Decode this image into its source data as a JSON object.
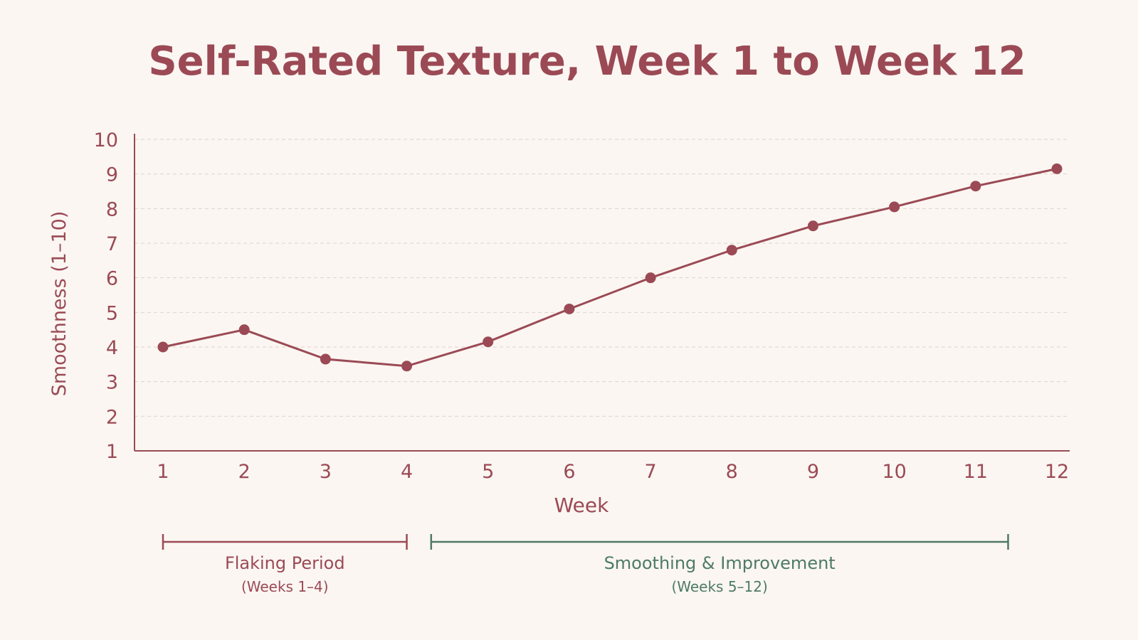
{
  "colors": {
    "background": "#fbf6f2",
    "primary": "#9b4a55",
    "secondary": "#4e7a66",
    "grid": "#dcd3cf"
  },
  "chart_data": {
    "type": "line",
    "title": "Self-Rated Texture, Week 1 to Week 12",
    "xlabel": "Week",
    "ylabel": "Smoothness (1–10)",
    "x": [
      1,
      2,
      3,
      4,
      5,
      6,
      7,
      8,
      9,
      10,
      11,
      12
    ],
    "x_ticks": [
      "1",
      "2",
      "3",
      "4",
      "5",
      "6",
      "7",
      "8",
      "9",
      "10",
      "11",
      "12"
    ],
    "y_ticks": [
      "1",
      "2",
      "3",
      "4",
      "5",
      "6",
      "7",
      "8",
      "9",
      "10"
    ],
    "ylim": [
      1,
      10
    ],
    "grid": "horizontal dashed",
    "series": [
      {
        "values": [
          4.0,
          4.5,
          3.65,
          3.45,
          4.15,
          5.1,
          6.0,
          6.8,
          7.5,
          8.05,
          8.65,
          9.15
        ]
      }
    ],
    "annotations": [
      {
        "label": "Flaking Period",
        "sublabel": "(Weeks 1–4)",
        "from": 1,
        "to": 4,
        "color": "#9b4a55"
      },
      {
        "label": "Smoothing & Improvement",
        "sublabel": "(Weeks 5–12)",
        "from": 4.3,
        "to": 11.4,
        "color": "#4e7a66"
      }
    ]
  }
}
